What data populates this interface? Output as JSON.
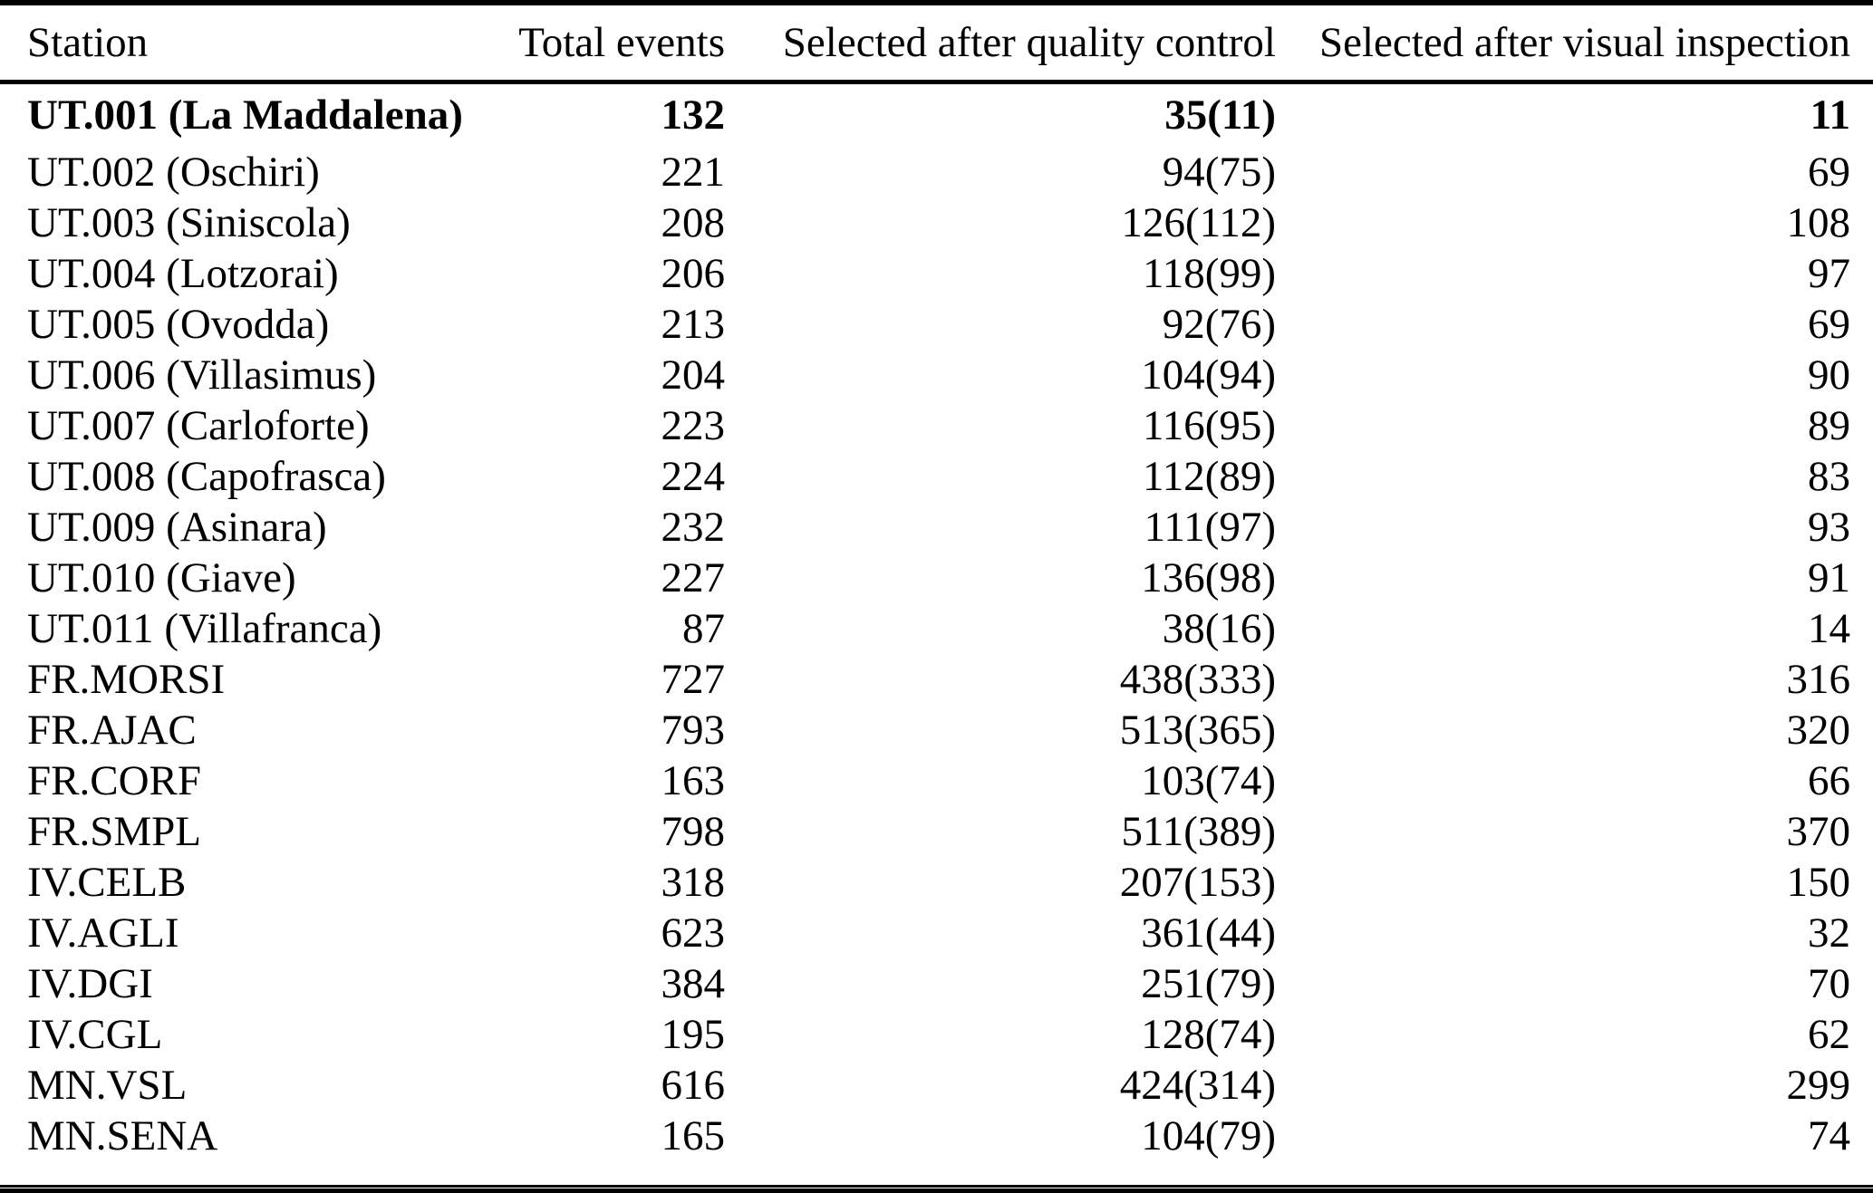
{
  "page": {
    "background_color": "#ffffff",
    "text_color": "#000000",
    "rule_color": "#000000"
  },
  "table": {
    "columns": [
      {
        "id": "station",
        "label": "Station"
      },
      {
        "id": "total",
        "label": "Total events"
      },
      {
        "id": "qc",
        "label": "Selected after quality control"
      },
      {
        "id": "visual",
        "label": "Selected after visual inspection"
      }
    ],
    "rows": [
      {
        "station": "UT.001 (La Maddalena)",
        "total": "132",
        "qc": "35(11)",
        "visual": "11",
        "bold": true
      },
      {
        "station": "UT.002 (Oschiri)",
        "total": "221",
        "qc": "94(75)",
        "visual": "69",
        "bold": false
      },
      {
        "station": "UT.003 (Siniscola)",
        "total": "208",
        "qc": "126(112)",
        "visual": "108",
        "bold": false
      },
      {
        "station": "UT.004 (Lotzorai)",
        "total": "206",
        "qc": "118(99)",
        "visual": "97",
        "bold": false
      },
      {
        "station": "UT.005 (Ovodda)",
        "total": "213",
        "qc": "92(76)",
        "visual": "69",
        "bold": false
      },
      {
        "station": "UT.006 (Villasimus)",
        "total": "204",
        "qc": "104(94)",
        "visual": "90",
        "bold": false
      },
      {
        "station": "UT.007 (Carloforte)",
        "total": "223",
        "qc": "116(95)",
        "visual": "89",
        "bold": false
      },
      {
        "station": "UT.008 (Capofrasca)",
        "total": "224",
        "qc": "112(89)",
        "visual": "83",
        "bold": false
      },
      {
        "station": "UT.009 (Asinara)",
        "total": "232",
        "qc": "111(97)",
        "visual": "93",
        "bold": false
      },
      {
        "station": "UT.010 (Giave)",
        "total": "227",
        "qc": "136(98)",
        "visual": "91",
        "bold": false
      },
      {
        "station": "UT.011 (Villafranca)",
        "total": "87",
        "qc": "38(16)",
        "visual": "14",
        "bold": false
      },
      {
        "station": "FR.MORSI",
        "total": "727",
        "qc": "438(333)",
        "visual": "316",
        "bold": false
      },
      {
        "station": "FR.AJAC",
        "total": "793",
        "qc": "513(365)",
        "visual": "320",
        "bold": false
      },
      {
        "station": "FR.CORF",
        "total": "163",
        "qc": "103(74)",
        "visual": "66",
        "bold": false
      },
      {
        "station": "FR.SMPL",
        "total": "798",
        "qc": "511(389)",
        "visual": "370",
        "bold": false
      },
      {
        "station": "IV.CELB",
        "total": "318",
        "qc": "207(153)",
        "visual": "150",
        "bold": false
      },
      {
        "station": "IV.AGLI",
        "total": "623",
        "qc": "361(44)",
        "visual": "32",
        "bold": false
      },
      {
        "station": "IV.DGI",
        "total": "384",
        "qc": "251(79)",
        "visual": "70",
        "bold": false
      },
      {
        "station": "IV.CGL",
        "total": "195",
        "qc": "128(74)",
        "visual": "62",
        "bold": false
      },
      {
        "station": "MN.VSL",
        "total": "616",
        "qc": "424(314)",
        "visual": "299",
        "bold": false
      },
      {
        "station": "MN.SENA",
        "total": "165",
        "qc": "104(79)",
        "visual": "74",
        "bold": false
      }
    ]
  }
}
